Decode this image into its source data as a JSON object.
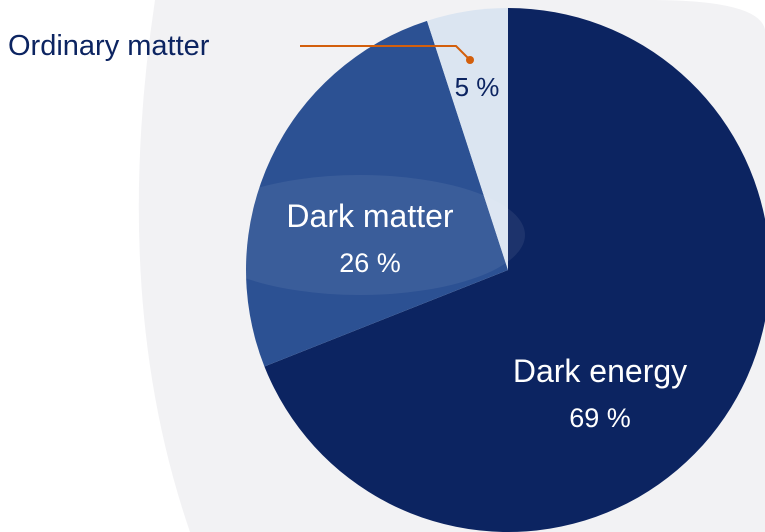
{
  "chart_data": {
    "type": "pie",
    "categories": [
      "Dark energy",
      "Dark matter",
      "Ordinary matter"
    ],
    "values": [
      69,
      26,
      5
    ],
    "value_labels": [
      "69 %",
      "26 %",
      "5 %"
    ],
    "colors": {
      "Dark energy": "#0c2461",
      "Dark matter": "#2c5193",
      "Ordinary matter": "#dbe5f1"
    },
    "start_angle": "12 o'clock",
    "direction": "clockwise",
    "callout": {
      "category": "Ordinary matter",
      "leader_color": "#d35f0c"
    },
    "text_colors": {
      "inside": "#ffffff",
      "outside": "#0c2461"
    },
    "background_watermark_color": "#f2f2f4"
  }
}
